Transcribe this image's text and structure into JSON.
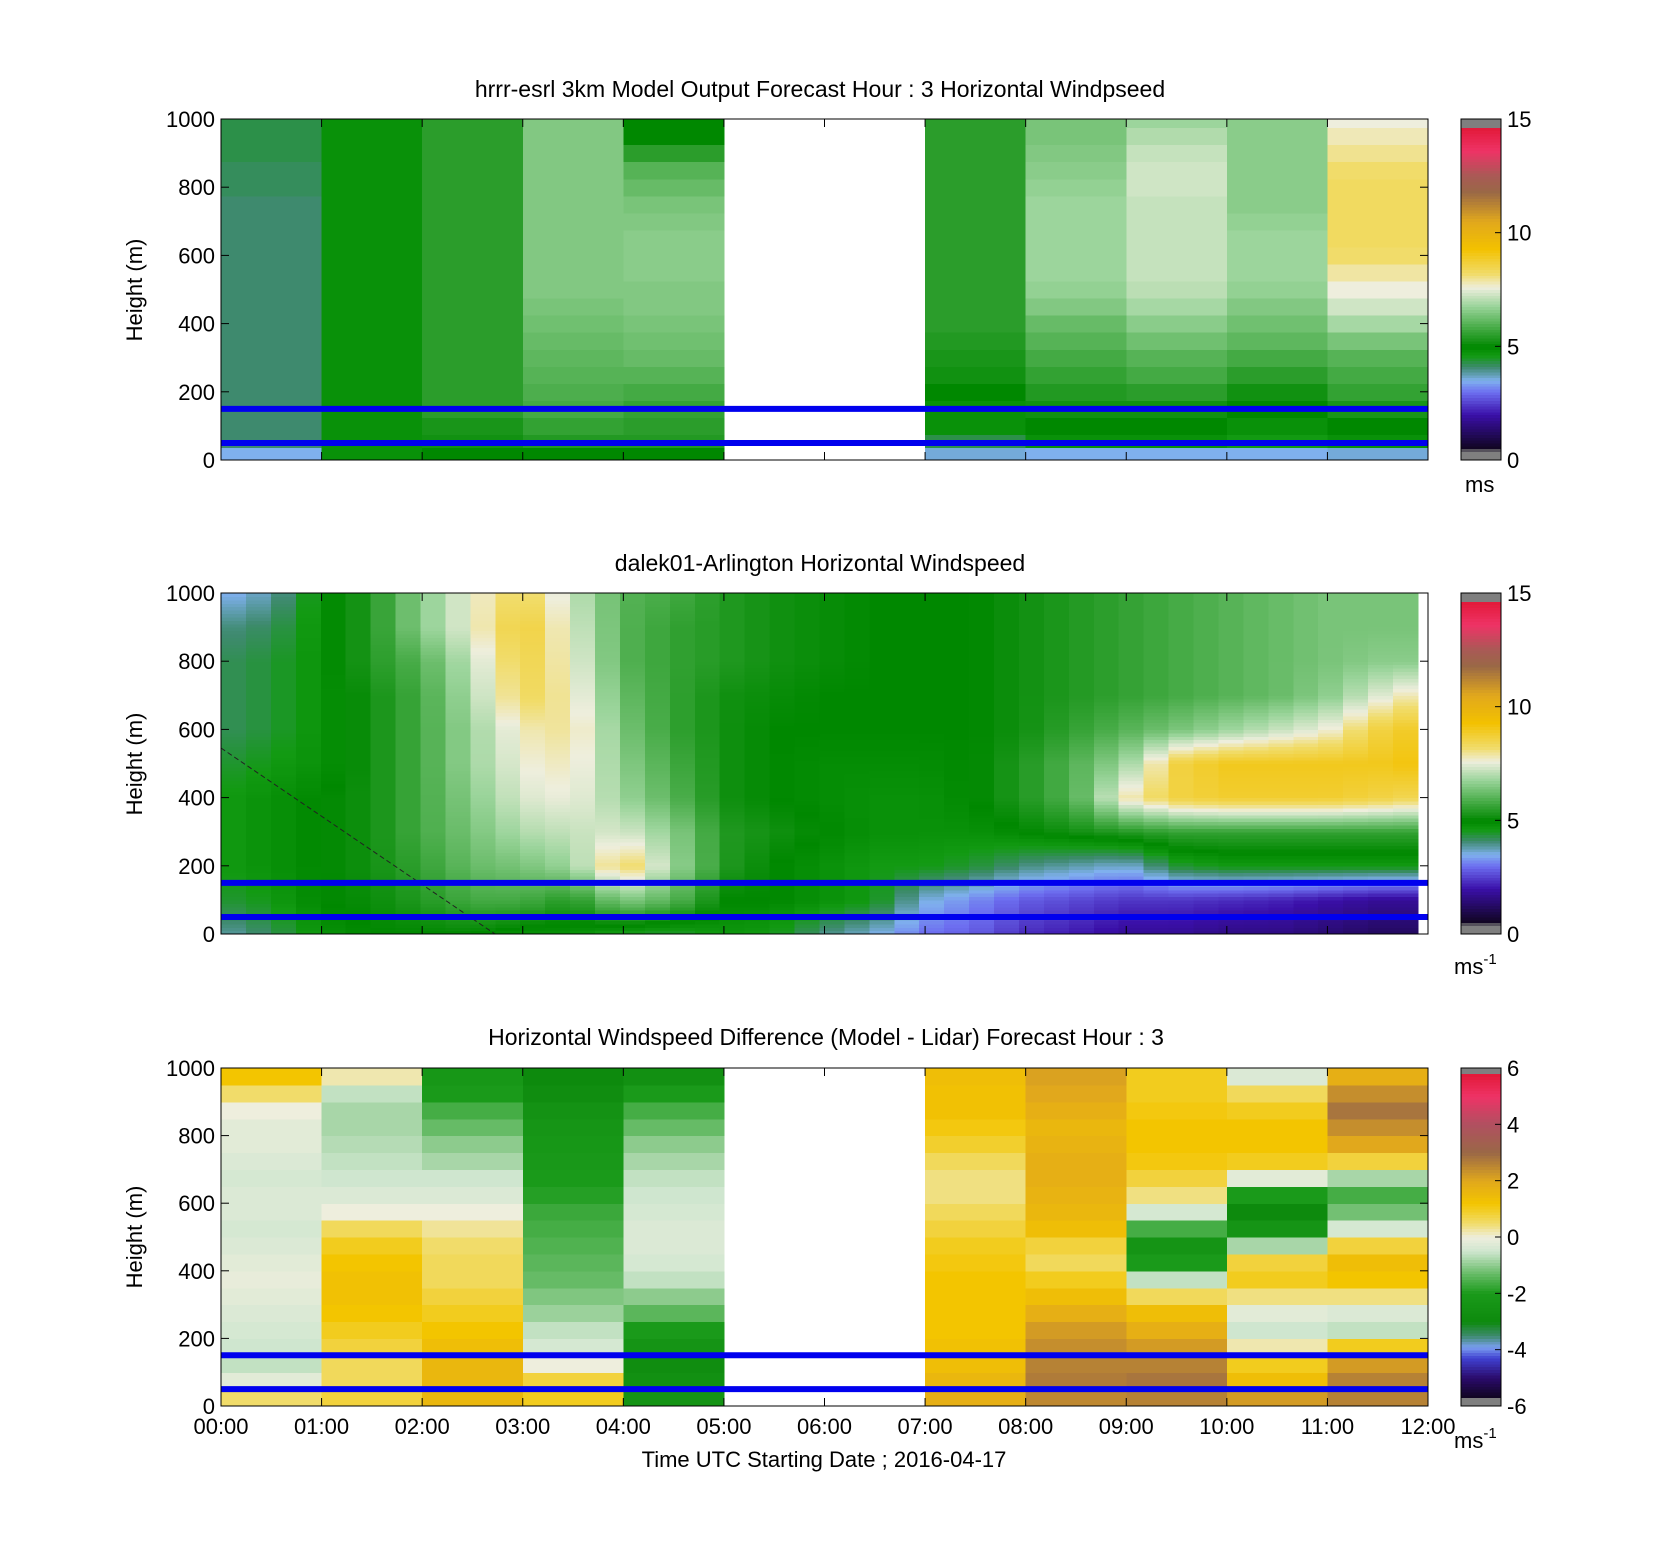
{
  "colors": {
    "reference_lines": "#0000ee",
    "wind_ramp": [
      {
        "v": 0.0,
        "c": "#7f7f7f"
      },
      {
        "v": 0.4,
        "c": "#7f7f7f"
      },
      {
        "v": 0.5,
        "c": "#10051f"
      },
      {
        "v": 2.0,
        "c": "#3a0fa8"
      },
      {
        "v": 3.0,
        "c": "#6d6ff0"
      },
      {
        "v": 3.5,
        "c": "#7fb0ee"
      },
      {
        "v": 4.1,
        "c": "#3e8a6e"
      },
      {
        "v": 4.6,
        "c": "#129a12"
      },
      {
        "v": 5.0,
        "c": "#008800"
      },
      {
        "v": 5.8,
        "c": "#44aa44"
      },
      {
        "v": 6.8,
        "c": "#9cd59c"
      },
      {
        "v": 7.6,
        "c": "#eeeedd"
      },
      {
        "v": 8.2,
        "c": "#f1dc6a"
      },
      {
        "v": 9.3,
        "c": "#f3c100"
      },
      {
        "v": 10.5,
        "c": "#e1a81c"
      },
      {
        "v": 11.8,
        "c": "#9a6846"
      },
      {
        "v": 12.5,
        "c": "#a85a55"
      },
      {
        "v": 13.6,
        "c": "#ee3366"
      },
      {
        "v": 14.6,
        "c": "#e31a3a"
      },
      {
        "v": 14.6,
        "c": "#7f7f7f"
      },
      {
        "v": 15.0,
        "c": "#7f7f7f"
      }
    ],
    "diff_ramp": [
      {
        "v": -6.0,
        "c": "#7f7f7f"
      },
      {
        "v": -5.75,
        "c": "#7f7f7f"
      },
      {
        "v": -5.7,
        "c": "#10051f"
      },
      {
        "v": -5.0,
        "c": "#2a0a6a"
      },
      {
        "v": -4.3,
        "c": "#4040d0"
      },
      {
        "v": -3.9,
        "c": "#7a9ef0"
      },
      {
        "v": -3.5,
        "c": "#3e8a6e"
      },
      {
        "v": -3.0,
        "c": "#0d8a0d"
      },
      {
        "v": -2.0,
        "c": "#1a9a1a"
      },
      {
        "v": -1.3,
        "c": "#66bb66"
      },
      {
        "v": -0.5,
        "c": "#cfe6cf"
      },
      {
        "v": 0.0,
        "c": "#eeeedd"
      },
      {
        "v": 0.5,
        "c": "#f1dc6a"
      },
      {
        "v": 1.2,
        "c": "#f3c500"
      },
      {
        "v": 2.0,
        "c": "#e1a81c"
      },
      {
        "v": 3.0,
        "c": "#9a6846"
      },
      {
        "v": 4.0,
        "c": "#b05060"
      },
      {
        "v": 5.0,
        "c": "#ee3366"
      },
      {
        "v": 5.75,
        "c": "#e31a3a"
      },
      {
        "v": 5.75,
        "c": "#7f7f7f"
      },
      {
        "v": 6.0,
        "c": "#7f7f7f"
      }
    ]
  },
  "shared": {
    "x_ticks": [
      "00:00",
      "01:00",
      "02:00",
      "03:00",
      "04:00",
      "05:00",
      "06:00",
      "07:00",
      "08:00",
      "09:00",
      "10:00",
      "11:00",
      "12:00"
    ],
    "x_label": "Time UTC  Starting Date ; 2016-04-17"
  },
  "chart_data": [
    {
      "type": "heatmap",
      "title": "hrrr-esrl 3km Model Output   Forecast Hour : 3 Horizontal Windpseed",
      "ylabel": "Height (m)",
      "xlim": [
        "00:00",
        "12:00"
      ],
      "ylim": [
        0,
        1000
      ],
      "y_ticks": [
        "0",
        "200",
        "400",
        "600",
        "800",
        "1000"
      ],
      "colorbar": {
        "range": [
          0,
          15
        ],
        "ticks": [
          "0",
          "5",
          "10",
          "15"
        ],
        "unit": "ms",
        "unit_sup": ""
      },
      "reference_lines_m": [
        50,
        150
      ],
      "rows_height_m": [
        25,
        50,
        100,
        150,
        200,
        250,
        300,
        350,
        400,
        450,
        500,
        550,
        600,
        650,
        700,
        750,
        800,
        850,
        900,
        950,
        1000
      ],
      "columns": [
        {
          "t_start": "00:00",
          "t_end": "01:00",
          "values": [
            3.5,
            4.1,
            4.1,
            4.1,
            4.1,
            4.1,
            4.1,
            4.1,
            4.1,
            4.1,
            4.1,
            4.1,
            4.1,
            4.1,
            4.1,
            4.1,
            4.2,
            4.2,
            4.3,
            4.3,
            4.3
          ]
        },
        {
          "t_start": "01:00",
          "t_end": "02:00",
          "values": [
            4.8,
            4.8,
            4.8,
            4.8,
            4.8,
            4.8,
            4.8,
            4.8,
            4.8,
            4.8,
            4.8,
            4.8,
            4.8,
            4.8,
            4.8,
            4.8,
            4.8,
            4.8,
            4.8,
            4.8,
            4.8
          ]
        },
        {
          "t_start": "02:00",
          "t_end": "03:00",
          "values": [
            5.0,
            5.2,
            5.3,
            5.5,
            5.5,
            5.5,
            5.5,
            5.5,
            5.5,
            5.5,
            5.5,
            5.5,
            5.5,
            5.5,
            5.5,
            5.5,
            5.5,
            5.5,
            5.5,
            5.5,
            5.5
          ]
        },
        {
          "t_start": "03:00",
          "t_end": "04:00",
          "values": [
            5.0,
            5.4,
            5.6,
            5.8,
            5.9,
            6.0,
            6.1,
            6.2,
            6.3,
            6.4,
            6.5,
            6.5,
            6.5,
            6.5,
            6.5,
            6.5,
            6.5,
            6.5,
            6.5,
            6.5,
            6.5
          ]
        },
        {
          "t_start": "04:00",
          "t_end": "05:00",
          "values": [
            5.0,
            5.4,
            5.5,
            5.6,
            5.8,
            6.0,
            6.2,
            6.3,
            6.4,
            6.5,
            6.5,
            6.6,
            6.6,
            6.6,
            6.5,
            6.4,
            6.2,
            6.0,
            5.5,
            5.0,
            5.0
          ]
        },
        {
          "t_start": "07:00",
          "t_end": "08:00",
          "values": [
            3.6,
            4.3,
            4.8,
            4.8,
            5.0,
            5.2,
            5.3,
            5.4,
            5.5,
            5.5,
            5.5,
            5.5,
            5.5,
            5.5,
            5.5,
            5.5,
            5.5,
            5.5,
            5.5,
            5.5,
            5.5
          ]
        },
        {
          "t_start": "08:00",
          "t_end": "09:00",
          "values": [
            3.5,
            4.8,
            5.0,
            5.2,
            5.4,
            5.6,
            5.8,
            6.0,
            6.2,
            6.5,
            6.7,
            6.8,
            6.8,
            6.8,
            6.8,
            6.8,
            6.7,
            6.6,
            6.5,
            6.4,
            6.4
          ]
        },
        {
          "t_start": "09:00",
          "t_end": "10:00",
          "values": [
            3.5,
            4.8,
            5.0,
            5.2,
            5.5,
            5.8,
            6.0,
            6.3,
            6.6,
            6.9,
            7.1,
            7.2,
            7.2,
            7.2,
            7.2,
            7.2,
            7.3,
            7.3,
            7.2,
            7.0,
            6.8
          ]
        },
        {
          "t_start": "10:00",
          "t_end": "11:00",
          "values": [
            3.5,
            4.6,
            4.8,
            5.0,
            5.2,
            5.5,
            5.8,
            6.1,
            6.3,
            6.5,
            6.7,
            6.8,
            6.8,
            6.8,
            6.7,
            6.6,
            6.6,
            6.6,
            6.6,
            6.6,
            6.6
          ]
        },
        {
          "t_start": "11:00",
          "t_end": "12:00",
          "values": [
            3.6,
            4.8,
            5.0,
            5.3,
            5.6,
            5.8,
            6.0,
            6.4,
            6.9,
            7.3,
            7.6,
            7.9,
            8.2,
            8.3,
            8.3,
            8.3,
            8.3,
            8.2,
            8.0,
            7.8,
            7.6
          ]
        }
      ]
    },
    {
      "type": "heatmap",
      "title": "dalek01-Arlington  Horizontal Windspeed",
      "ylabel": "Height (m)",
      "xlim": [
        "00:00",
        "12:00"
      ],
      "ylim": [
        0,
        1000
      ],
      "y_ticks": [
        "0",
        "200",
        "400",
        "600",
        "800",
        "1000"
      ],
      "colorbar": {
        "range": [
          0,
          15
        ],
        "ticks": [
          "0",
          "5",
          "10",
          "15"
        ],
        "unit": "ms",
        "unit_sup": "-1"
      },
      "reference_lines_m": [
        50,
        150
      ],
      "gap_flagged_color": "#a6a6a6",
      "rows_height_m": [
        0,
        100,
        200,
        300,
        400,
        500,
        600,
        700,
        800,
        900,
        1000
      ],
      "columns_hour": [
        0,
        0.5,
        1,
        1.5,
        2,
        2.5,
        3,
        3.5,
        4,
        4.5,
        5,
        5.5,
        6,
        6.5,
        7,
        7.5,
        8,
        8.5,
        9,
        9.5,
        10,
        10.5,
        11,
        11.5,
        11.9
      ],
      "values": [
        [
          3.8,
          4.2,
          4.8,
          5.0,
          5.0,
          5.0,
          4.8,
          4.8,
          4.5,
          4.4,
          4.7,
          4.6,
          4.0,
          3.6,
          3.0,
          2.8,
          2.3,
          2.1,
          1.8,
          1.8,
          1.6,
          1.6,
          1.4,
          1.2,
          1.2
        ],
        [
          4.4,
          4.6,
          5.0,
          5.1,
          5.4,
          5.8,
          5.8,
          5.4,
          6.5,
          6.0,
          5.0,
          5.0,
          4.8,
          4.6,
          3.6,
          3.2,
          2.8,
          2.6,
          2.4,
          2.4,
          2.3,
          2.2,
          2.0,
          1.8,
          1.8
        ],
        [
          4.6,
          4.8,
          5.0,
          5.2,
          5.6,
          6.2,
          6.4,
          6.8,
          8.5,
          6.8,
          5.4,
          5.0,
          4.8,
          4.6,
          4.6,
          4.4,
          4.0,
          3.8,
          3.6,
          4.4,
          4.6,
          4.6,
          4.6,
          4.6,
          4.6
        ],
        [
          4.6,
          4.8,
          5.0,
          5.2,
          5.8,
          6.4,
          7.0,
          7.2,
          7.4,
          6.6,
          5.4,
          5.2,
          5.0,
          4.8,
          4.8,
          4.8,
          5.0,
          5.2,
          5.4,
          5.6,
          5.6,
          5.6,
          5.6,
          5.6,
          5.6
        ],
        [
          4.6,
          4.8,
          5.0,
          5.2,
          5.8,
          6.6,
          7.4,
          7.6,
          6.8,
          6.0,
          5.2,
          5.0,
          4.9,
          4.8,
          4.8,
          5.0,
          5.4,
          6.0,
          7.8,
          8.6,
          8.8,
          8.8,
          8.8,
          8.6,
          8.4
        ],
        [
          4.4,
          4.6,
          4.8,
          5.2,
          5.8,
          6.8,
          7.6,
          7.8,
          6.6,
          5.8,
          5.2,
          5.0,
          4.9,
          4.9,
          4.9,
          5.0,
          5.4,
          6.0,
          6.8,
          8.6,
          9.0,
          9.0,
          9.0,
          9.0,
          9.2
        ],
        [
          4.2,
          4.4,
          4.8,
          5.2,
          5.8,
          6.8,
          7.8,
          8.0,
          6.4,
          5.6,
          5.2,
          5.0,
          5.0,
          5.0,
          5.0,
          5.0,
          5.2,
          5.6,
          6.0,
          6.4,
          6.8,
          7.2,
          7.6,
          8.6,
          9.0
        ],
        [
          4.2,
          4.4,
          4.8,
          5.2,
          5.8,
          7.0,
          8.4,
          7.8,
          6.2,
          5.6,
          5.2,
          5.1,
          5.0,
          5.0,
          5.0,
          5.0,
          5.2,
          5.4,
          5.6,
          5.8,
          6.0,
          6.2,
          6.6,
          7.4,
          8.0
        ],
        [
          4.2,
          4.4,
          4.8,
          5.4,
          6.0,
          7.2,
          8.6,
          7.6,
          6.0,
          5.6,
          5.4,
          5.2,
          5.1,
          5.0,
          5.0,
          5.0,
          5.2,
          5.4,
          5.6,
          5.8,
          6.0,
          6.2,
          6.4,
          6.6,
          6.6
        ],
        [
          4.0,
          4.2,
          4.8,
          5.4,
          6.6,
          7.6,
          8.8,
          7.4,
          6.0,
          5.6,
          5.4,
          5.2,
          5.1,
          5.0,
          5.0,
          5.0,
          5.2,
          5.4,
          5.6,
          5.8,
          6.0,
          6.2,
          6.4,
          6.4,
          6.4
        ],
        [
          3.4,
          3.8,
          4.8,
          5.4,
          6.6,
          7.6,
          8.4,
          7.2,
          6.0,
          5.8,
          5.4,
          5.2,
          5.1,
          5.0,
          5.0,
          5.0,
          5.2,
          5.4,
          5.6,
          5.8,
          6.0,
          6.2,
          6.4,
          6.4,
          6.4
        ]
      ]
    },
    {
      "type": "heatmap",
      "title": "Horizontal Windspeed Difference (Model - Lidar) Forecast Hour : 3",
      "ylabel": "Height (m)",
      "xlim": [
        "00:00",
        "12:00"
      ],
      "ylim": [
        0,
        1000
      ],
      "y_ticks": [
        "0",
        "200",
        "400",
        "600",
        "800",
        "1000"
      ],
      "colorbar": {
        "range": [
          -6,
          6
        ],
        "ticks": [
          "-6",
          "-4",
          "-2",
          "0",
          "2",
          "4",
          "6"
        ],
        "unit": "ms",
        "unit_sup": "-1"
      },
      "reference_lines_m": [
        50,
        150
      ],
      "rows_height_m": [
        25,
        75,
        125,
        175,
        225,
        275,
        325,
        375,
        425,
        475,
        525,
        575,
        625,
        675,
        725,
        775,
        825,
        875,
        925,
        975
      ],
      "columns": [
        {
          "t_start": "00:00",
          "t_end": "01:00",
          "values": [
            0.5,
            -0.2,
            -0.6,
            -0.5,
            -0.4,
            -0.3,
            -0.2,
            -0.1,
            -0.2,
            -0.3,
            -0.4,
            -0.3,
            -0.3,
            -0.4,
            -0.3,
            -0.2,
            -0.2,
            0.0,
            0.5,
            1.2
          ]
        },
        {
          "t_start": "01:00",
          "t_end": "02:00",
          "values": [
            0.8,
            0.6,
            0.6,
            0.8,
            1.0,
            1.2,
            1.3,
            1.3,
            1.2,
            1.0,
            0.6,
            0.0,
            -0.3,
            -0.5,
            -0.6,
            -0.7,
            -0.8,
            -0.8,
            -0.6,
            0.2
          ]
        },
        {
          "t_start": "02:00",
          "t_end": "03:00",
          "values": [
            1.6,
            1.6,
            1.6,
            1.4,
            1.2,
            1.0,
            0.8,
            0.6,
            0.6,
            0.5,
            0.3,
            0.0,
            -0.3,
            -0.5,
            -0.8,
            -1.0,
            -1.3,
            -1.6,
            -2.0,
            -2.2
          ]
        },
        {
          "t_start": "03:00",
          "t_end": "04:00",
          "values": [
            1.0,
            0.8,
            0.0,
            -0.4,
            -0.6,
            -0.9,
            -1.1,
            -1.3,
            -1.4,
            -1.5,
            -1.6,
            -1.7,
            -1.9,
            -2.0,
            -2.1,
            -2.2,
            -2.3,
            -2.5,
            -2.8,
            -3.0
          ]
        },
        {
          "t_start": "04:00",
          "t_end": "05:00",
          "values": [
            -2.4,
            -2.6,
            -2.8,
            -2.4,
            -2.0,
            -1.4,
            -1.0,
            -0.6,
            -0.4,
            -0.3,
            -0.3,
            -0.4,
            -0.5,
            -0.6,
            -0.8,
            -1.0,
            -1.3,
            -1.6,
            -2.0,
            -2.6
          ]
        },
        {
          "t_start": "07:00",
          "t_end": "08:00",
          "values": [
            1.8,
            1.6,
            1.4,
            1.3,
            1.2,
            1.2,
            1.2,
            1.2,
            1.1,
            1.0,
            0.8,
            0.6,
            0.4,
            0.4,
            0.6,
            0.9,
            1.1,
            1.3,
            1.3,
            1.4
          ]
        },
        {
          "t_start": "08:00",
          "t_end": "09:00",
          "values": [
            2.5,
            2.7,
            2.6,
            2.4,
            2.2,
            1.8,
            1.4,
            1.0,
            0.6,
            0.8,
            1.4,
            1.6,
            1.7,
            1.8,
            1.8,
            1.7,
            1.6,
            1.8,
            2.0,
            2.1
          ]
        },
        {
          "t_start": "09:00",
          "t_end": "10:00",
          "values": [
            2.6,
            2.8,
            2.6,
            2.2,
            1.8,
            1.4,
            0.6,
            -0.6,
            -2.0,
            -2.4,
            -1.6,
            -0.4,
            0.4,
            0.8,
            1.1,
            1.2,
            1.2,
            1.1,
            1.0,
            1.0
          ]
        },
        {
          "t_start": "10:00",
          "t_end": "11:00",
          "values": [
            2.2,
            1.4,
            1.0,
            0.2,
            -0.5,
            -0.2,
            0.4,
            1.0,
            0.8,
            -0.8,
            -2.4,
            -3.0,
            -2.0,
            -0.2,
            1.0,
            1.2,
            1.2,
            1.0,
            0.6,
            -0.3
          ]
        },
        {
          "t_start": "11:00",
          "t_end": "12:00",
          "values": [
            2.6,
            2.6,
            2.2,
            1.0,
            -0.6,
            -0.3,
            0.4,
            1.2,
            1.4,
            0.8,
            -0.4,
            -1.2,
            -1.6,
            -0.8,
            0.8,
            2.0,
            2.4,
            2.8,
            2.4,
            1.8
          ]
        }
      ]
    }
  ]
}
